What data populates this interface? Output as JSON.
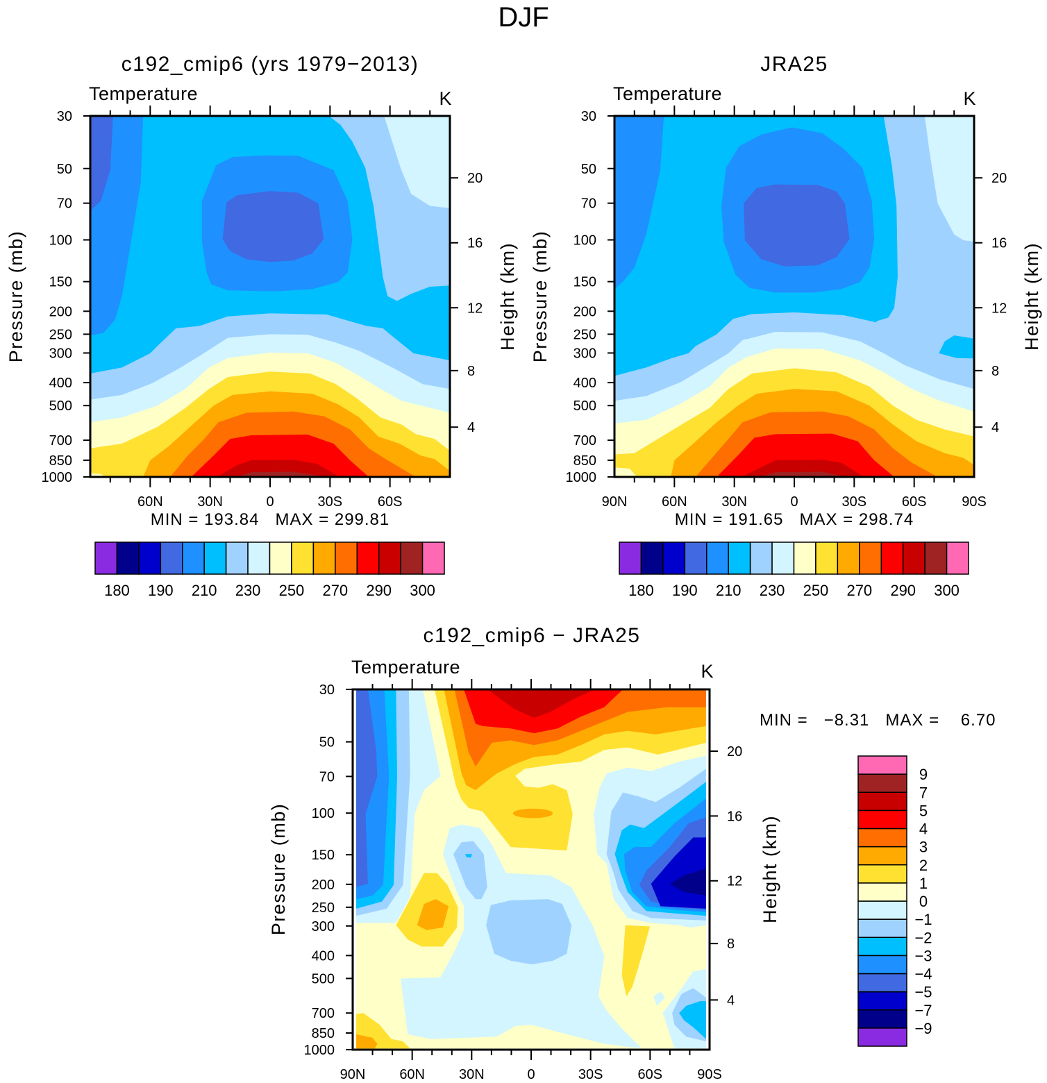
{
  "figure_title": "DJF",
  "colors": [
    "#8A2BE2",
    "#00008B",
    "#0000CD",
    "#4169E1",
    "#1E90FF",
    "#00BFFF",
    "#A0D2FF",
    "#D2F5FF",
    "#FFFFC8",
    "#FFE132",
    "#FFAA00",
    "#FF6E00",
    "#FF0000",
    "#C80000",
    "#A02323",
    "#FF69B4"
  ],
  "chart_data": [
    {
      "type": "contour",
      "title": "c192_cmip6 (yrs 1979−2013)",
      "left_string": "Temperature",
      "right_string": "K",
      "ylabel": "Pressure (mb)",
      "y2label": "Height (km)",
      "x_range": [
        "90N",
        "90S"
      ],
      "x_ticks": [
        {
          "lat": 60,
          "label": "60N"
        },
        {
          "lat": 30,
          "label": "30N"
        },
        {
          "lat": 0,
          "label": "0"
        },
        {
          "lat": -30,
          "label": "30S"
        },
        {
          "lat": -60,
          "label": "60S"
        }
      ],
      "y_ticks": [
        {
          "p": 30,
          "label": "30"
        },
        {
          "p": 50,
          "label": "50"
        },
        {
          "p": 70,
          "label": "70"
        },
        {
          "p": 100,
          "label": "100"
        },
        {
          "p": 150,
          "label": "150"
        },
        {
          "p": 200,
          "label": "200"
        },
        {
          "p": 250,
          "label": "250"
        },
        {
          "p": 300,
          "label": "300"
        },
        {
          "p": 400,
          "label": "400"
        },
        {
          "p": 500,
          "label": "500"
        },
        {
          "p": 700,
          "label": "700"
        },
        {
          "p": 850,
          "label": "850"
        },
        {
          "p": 1000,
          "label": "1000"
        }
      ],
      "y2_ticks": [
        {
          "km": 20,
          "label": "20"
        },
        {
          "km": 16,
          "label": "16"
        },
        {
          "km": 12,
          "label": "12"
        },
        {
          "km": 8,
          "label": "8"
        },
        {
          "km": 4,
          "label": "4"
        }
      ],
      "stats": "MIN = 193.84   MAX = 299.81",
      "min": 193.84,
      "max": 299.81,
      "colorbar_labels": [
        "180",
        "190",
        "210",
        "230",
        "250",
        "270",
        "290",
        "300"
      ]
    },
    {
      "type": "contour",
      "title": "JRA25",
      "left_string": "Temperature",
      "right_string": "K",
      "ylabel": "Pressure (mb)",
      "y2label": "Height (km)",
      "x_range": [
        "90N",
        "90S"
      ],
      "x_ticks": [
        {
          "lat": 90,
          "label": "90N"
        },
        {
          "lat": 60,
          "label": "60N"
        },
        {
          "lat": 30,
          "label": "30N"
        },
        {
          "lat": 0,
          "label": "0"
        },
        {
          "lat": -30,
          "label": "30S"
        },
        {
          "lat": -60,
          "label": "60S"
        },
        {
          "lat": -90,
          "label": "90S"
        }
      ],
      "y_ticks": [
        {
          "p": 30,
          "label": "30"
        },
        {
          "p": 50,
          "label": "50"
        },
        {
          "p": 70,
          "label": "70"
        },
        {
          "p": 100,
          "label": "100"
        },
        {
          "p": 150,
          "label": "150"
        },
        {
          "p": 200,
          "label": "200"
        },
        {
          "p": 250,
          "label": "250"
        },
        {
          "p": 300,
          "label": "300"
        },
        {
          "p": 400,
          "label": "400"
        },
        {
          "p": 500,
          "label": "500"
        },
        {
          "p": 700,
          "label": "700"
        },
        {
          "p": 850,
          "label": "850"
        },
        {
          "p": 1000,
          "label": "1000"
        }
      ],
      "y2_ticks": [
        {
          "km": 20,
          "label": "20"
        },
        {
          "km": 16,
          "label": "16"
        },
        {
          "km": 12,
          "label": "12"
        },
        {
          "km": 8,
          "label": "8"
        },
        {
          "km": 4,
          "label": "4"
        }
      ],
      "stats": "MIN = 191.65   MAX = 298.74",
      "min": 191.65,
      "max": 298.74,
      "colorbar_labels": [
        "180",
        "190",
        "210",
        "230",
        "250",
        "270",
        "290",
        "300"
      ]
    },
    {
      "type": "contour",
      "title": "c192_cmip6 − JRA25",
      "left_string": "Temperature",
      "right_string": "K",
      "ylabel": "Pressure (mb)",
      "y2label": "Height (km)",
      "x_range": [
        "90N",
        "90S"
      ],
      "x_ticks": [
        {
          "lat": 90,
          "label": "90N"
        },
        {
          "lat": 60,
          "label": "60N"
        },
        {
          "lat": 30,
          "label": "30N"
        },
        {
          "lat": 0,
          "label": "0"
        },
        {
          "lat": -30,
          "label": "30S"
        },
        {
          "lat": -60,
          "label": "60S"
        },
        {
          "lat": -90,
          "label": "90S"
        }
      ],
      "y_ticks": [
        {
          "p": 30,
          "label": "30"
        },
        {
          "p": 50,
          "label": "50"
        },
        {
          "p": 70,
          "label": "70"
        },
        {
          "p": 100,
          "label": "100"
        },
        {
          "p": 150,
          "label": "150"
        },
        {
          "p": 200,
          "label": "200"
        },
        {
          "p": 250,
          "label": "250"
        },
        {
          "p": 300,
          "label": "300"
        },
        {
          "p": 400,
          "label": "400"
        },
        {
          "p": 500,
          "label": "500"
        },
        {
          "p": 700,
          "label": "700"
        },
        {
          "p": 850,
          "label": "850"
        },
        {
          "p": 1000,
          "label": "1000"
        }
      ],
      "y2_ticks": [
        {
          "km": 20,
          "label": "20"
        },
        {
          "km": 16,
          "label": "16"
        },
        {
          "km": 12,
          "label": "12"
        },
        {
          "km": 8,
          "label": "8"
        },
        {
          "km": 4,
          "label": "4"
        }
      ],
      "stats": "MIN =   −8.31   MAX =    6.70",
      "min": -8.31,
      "max": 6.7,
      "colorbar_labels": [
        "9",
        "7",
        "5",
        "4",
        "3",
        "2",
        "1",
        "0",
        "−1",
        "−2",
        "−3",
        "−4",
        "−5",
        "−7",
        "−9"
      ]
    }
  ]
}
